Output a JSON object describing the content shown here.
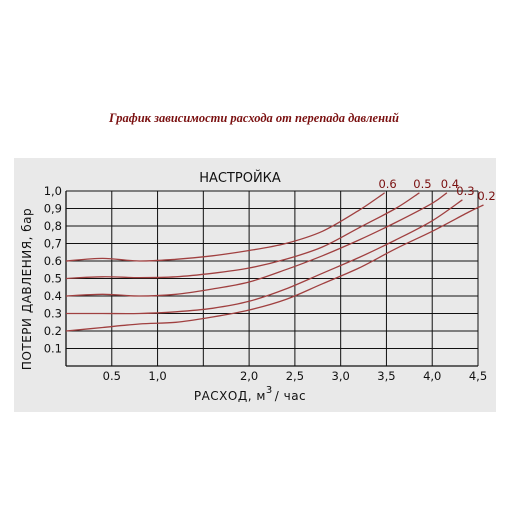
{
  "chart_data": {
    "type": "line",
    "title": "График  зависимости  расхода от перепада давлений",
    "panel_label": "НАСТРОЙКА",
    "xlabel": "РАСХОД, м",
    "xlabel_sup": "3",
    "xlabel_tail": "/ час",
    "ylabel": "ПОТЕРИ ДАВЛЕНИЯ, бар",
    "xlim": [
      0,
      4.5
    ],
    "ylim": [
      0,
      1.0
    ],
    "x_ticks": [
      {
        "value": 0.5,
        "label": "0.5"
      },
      {
        "value": 1.0,
        "label": "1,0"
      },
      {
        "value": 1.5,
        "label": ""
      },
      {
        "value": 2.0,
        "label": "2,0"
      },
      {
        "value": 2.5,
        "label": "2,5"
      },
      {
        "value": 3.0,
        "label": "3,0"
      },
      {
        "value": 3.5,
        "label": "3,5"
      },
      {
        "value": 4.0,
        "label": "4,0"
      },
      {
        "value": 4.5,
        "label": "4,5"
      }
    ],
    "y_ticks": [
      {
        "value": 0.1,
        "label": "0.1"
      },
      {
        "value": 0.2,
        "label": "0.2"
      },
      {
        "value": 0.3,
        "label": "0.3"
      },
      {
        "value": 0.4,
        "label": "0.4"
      },
      {
        "value": 0.5,
        "label": "0.5"
      },
      {
        "value": 0.6,
        "label": "0.6"
      },
      {
        "value": 0.7,
        "label": "0,7"
      },
      {
        "value": 0.8,
        "label": "0,8"
      },
      {
        "value": 0.9,
        "label": "0,9"
      },
      {
        "value": 1.0,
        "label": "1,0"
      }
    ],
    "grid": true,
    "line_color": "#a04040",
    "series": [
      {
        "name": "0.6",
        "points": [
          [
            0,
            0.6
          ],
          [
            0.4,
            0.615
          ],
          [
            0.8,
            0.6
          ],
          [
            1.2,
            0.61
          ],
          [
            1.6,
            0.63
          ],
          [
            2.0,
            0.66
          ],
          [
            2.4,
            0.7
          ],
          [
            2.8,
            0.77
          ],
          [
            3.2,
            0.89
          ],
          [
            3.4,
            0.96
          ],
          [
            3.48,
            0.99
          ]
        ]
      },
      {
        "name": "0.5",
        "points": [
          [
            0,
            0.5
          ],
          [
            0.4,
            0.51
          ],
          [
            0.8,
            0.505
          ],
          [
            1.2,
            0.51
          ],
          [
            1.6,
            0.53
          ],
          [
            2.0,
            0.56
          ],
          [
            2.4,
            0.61
          ],
          [
            2.8,
            0.68
          ],
          [
            3.2,
            0.79
          ],
          [
            3.6,
            0.9
          ],
          [
            3.86,
            0.99
          ]
        ]
      },
      {
        "name": "0.4",
        "points": [
          [
            0,
            0.4
          ],
          [
            0.4,
            0.41
          ],
          [
            0.8,
            0.4
          ],
          [
            1.2,
            0.41
          ],
          [
            1.6,
            0.44
          ],
          [
            2.0,
            0.48
          ],
          [
            2.4,
            0.55
          ],
          [
            2.8,
            0.63
          ],
          [
            3.2,
            0.72
          ],
          [
            3.6,
            0.82
          ],
          [
            4.0,
            0.93
          ],
          [
            4.16,
            0.99
          ]
        ]
      },
      {
        "name": "0.3",
        "points": [
          [
            0,
            0.3
          ],
          [
            0.4,
            0.3
          ],
          [
            0.8,
            0.3
          ],
          [
            1.2,
            0.31
          ],
          [
            1.6,
            0.33
          ],
          [
            2.0,
            0.37
          ],
          [
            2.4,
            0.44
          ],
          [
            2.8,
            0.53
          ],
          [
            3.2,
            0.62
          ],
          [
            3.6,
            0.72
          ],
          [
            4.0,
            0.83
          ],
          [
            4.33,
            0.95
          ]
        ]
      },
      {
        "name": "0.2",
        "points": [
          [
            0,
            0.2
          ],
          [
            0.4,
            0.22
          ],
          [
            0.8,
            0.24
          ],
          [
            1.2,
            0.25
          ],
          [
            1.6,
            0.28
          ],
          [
            2.0,
            0.32
          ],
          [
            2.4,
            0.38
          ],
          [
            2.8,
            0.47
          ],
          [
            3.2,
            0.56
          ],
          [
            3.6,
            0.67
          ],
          [
            4.0,
            0.77
          ],
          [
            4.4,
            0.88
          ],
          [
            4.56,
            0.92
          ]
        ]
      }
    ]
  }
}
